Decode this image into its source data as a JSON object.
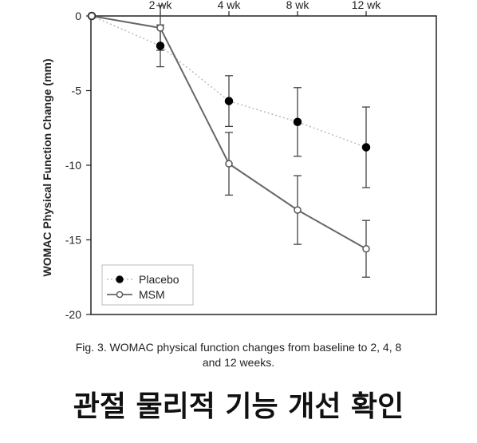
{
  "chart_data": {
    "type": "line",
    "x": [
      "0",
      "2 wk",
      "4 wk",
      "8 wk",
      "12 wk"
    ],
    "ylabel": "WOMAC Physical Function Change (mm)",
    "ylim": [
      -20,
      0
    ],
    "yticks": [
      0,
      -5,
      -10,
      -15,
      -20
    ],
    "x_tick_labels": [
      "2 wk",
      "4 wk",
      "8 wk",
      "12 wk"
    ],
    "series": [
      {
        "name": "Placebo",
        "marker": "filled-circle",
        "line_style": "dotted",
        "color": "#000000",
        "line_color": "#bbbbbb",
        "values": [
          0,
          -2.0,
          -5.7,
          -7.1,
          -8.8
        ],
        "error": [
          null,
          1.4,
          1.7,
          2.3,
          2.7
        ]
      },
      {
        "name": "MSM",
        "marker": "open-circle",
        "line_style": "solid",
        "color": "#555555",
        "line_color": "#666666",
        "values": [
          0,
          -0.8,
          -9.9,
          -13.0,
          -15.6
        ],
        "error": [
          null,
          1.5,
          2.1,
          2.3,
          1.9
        ]
      }
    ],
    "legend_position": "bottom-left",
    "grid": false
  },
  "caption": {
    "line1": "Fig. 3. WOMAC physical function changes from baseline to 2, 4, 8",
    "line2": "and 12 weeks."
  },
  "headline": "관절 물리적 기능 개선 확인"
}
